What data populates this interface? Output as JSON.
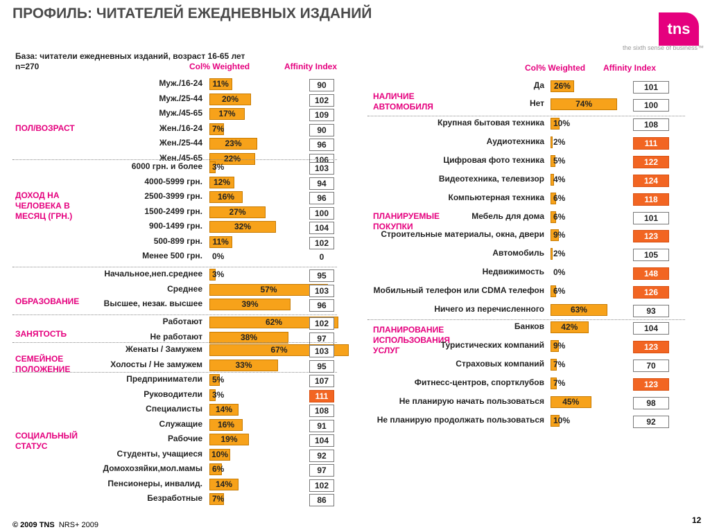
{
  "title": "ПРОФИЛЬ: ЧИТАТЕЛЕЙ ЕЖЕДНЕВНЫХ ИЗДАНИЙ",
  "logo": "tns",
  "tagline": "the sixth sense of business™",
  "base_line1": "База: читатели ежедневных изданий, возраст 16-65 лет",
  "base_line2": "n=270",
  "footer": {
    "copyright": "© 2009 TNS",
    "source": "NRS+ 2009"
  },
  "page_number": "12",
  "colors": {
    "bar": "#f7a21a",
    "index_high": "#f26522",
    "accent": "#e5007e"
  },
  "left_header": {
    "col": "Col% Weighted",
    "affinity": "Affinity Index"
  },
  "right_header": {
    "col": "Col% Weighted",
    "affinity": "Affinity Index"
  },
  "chart_data": {
    "type": "bar",
    "left_panel": [
      {
        "category": "ПОЛ/ВОЗРАСТ",
        "rows": [
          {
            "label": "Муж./16-24",
            "pct": 11,
            "index": 90
          },
          {
            "label": "Муж./25-44",
            "pct": 20,
            "index": 102
          },
          {
            "label": "Муж./45-65",
            "pct": 17,
            "index": 109
          },
          {
            "label": "Жен./16-24",
            "pct": 7,
            "index": 90
          },
          {
            "label": "Жен./25-44",
            "pct": 23,
            "index": 96
          },
          {
            "label": "Жен./45-65",
            "pct": 22,
            "index": 106
          }
        ]
      },
      {
        "category": "ДОХОД НА ЧЕЛОВЕКА В МЕСЯЦ (ГРН.)",
        "rows": [
          {
            "label": "6000 грн. и более",
            "pct": 3,
            "index": 103
          },
          {
            "label": "4000-5999 грн.",
            "pct": 12,
            "index": 94
          },
          {
            "label": "2500-3999 грн.",
            "pct": 16,
            "index": 96
          },
          {
            "label": "1500-2499 грн.",
            "pct": 27,
            "index": 100
          },
          {
            "label": "900-1499 грн.",
            "pct": 32,
            "index": 104
          },
          {
            "label": "500-899 грн.",
            "pct": 11,
            "index": 102
          },
          {
            "label": "Менее 500 грн.",
            "pct": 0,
            "index": 0
          }
        ]
      },
      {
        "category": "ОБРАЗОВАНИЕ",
        "rows": [
          {
            "label": "Начальное,неп.среднее",
            "pct": 3,
            "index": 95
          },
          {
            "label": "Среднее",
            "pct": 57,
            "index": 103
          },
          {
            "label": "Высшее, незак. высшее",
            "pct": 39,
            "index": 96
          }
        ]
      },
      {
        "category": "ЗАНЯТОСТЬ",
        "rows": [
          {
            "label": "Работают",
            "pct": 62,
            "index": 102
          },
          {
            "label": "Не работают",
            "pct": 38,
            "index": 97
          }
        ]
      },
      {
        "category": "СЕМЕЙНОЕ ПОЛОЖЕНИЕ",
        "rows": [
          {
            "label": "Женаты / Замужем",
            "pct": 67,
            "index": 103
          },
          {
            "label": "Холосты / Не замужем",
            "pct": 33,
            "index": 95
          }
        ]
      },
      {
        "category": "СОЦИАЛЬНЫЙ СТАТУС",
        "rows": [
          {
            "label": "Предприниматели",
            "pct": 5,
            "index": 107
          },
          {
            "label": "Руководители",
            "pct": 3,
            "index": 111
          },
          {
            "label": "Специалисты",
            "pct": 14,
            "index": 108
          },
          {
            "label": "Служащие",
            "pct": 16,
            "index": 91
          },
          {
            "label": "Рабочие",
            "pct": 19,
            "index": 104
          },
          {
            "label": "Студенты, учащиеся",
            "pct": 10,
            "index": 92
          },
          {
            "label": "Домохозяйки,мол.мамы",
            "pct": 6,
            "index": 97
          },
          {
            "label": "Пенсионеры, инвалид.",
            "pct": 14,
            "index": 102
          },
          {
            "label": "Безработные",
            "pct": 7,
            "index": 86
          }
        ]
      }
    ],
    "right_panel": [
      {
        "category": "НАЛИЧИЕ АВТОМОБИЛЯ",
        "rows": [
          {
            "label": "Да",
            "pct": 26,
            "index": 101
          },
          {
            "label": "Нет",
            "pct": 74,
            "index": 100
          }
        ]
      },
      {
        "category": "ПЛАНИРУЕМЫЕ ПОКУПКИ",
        "rows": [
          {
            "label": "Крупная бытовая техника",
            "pct": 10,
            "index": 108
          },
          {
            "label": "Аудиотехника",
            "pct": 2,
            "index": 111
          },
          {
            "label": "Цифровая фото техника",
            "pct": 5,
            "index": 122
          },
          {
            "label": "Видеотехника, телевизор",
            "pct": 4,
            "index": 124
          },
          {
            "label": "Компьютерная техника",
            "pct": 6,
            "index": 118
          },
          {
            "label": "Мебель для дома",
            "pct": 6,
            "index": 101
          },
          {
            "label": "Строительные материалы, окна, двери",
            "pct": 9,
            "index": 123
          },
          {
            "label": "Автомобиль",
            "pct": 2,
            "index": 105
          },
          {
            "label": "Недвижимость",
            "pct": 0,
            "index": 148
          },
          {
            "label": "Мобильный телефон или CDMA телефон",
            "pct": 6,
            "index": 126
          },
          {
            "label": "Ничего из перечисленного",
            "pct": 63,
            "index": 93
          }
        ]
      },
      {
        "category": "ПЛАНИРОВАНИЕ ИСПОЛЬЗОВАНИЯ УСЛУГ",
        "rows": [
          {
            "label": "Банков",
            "pct": 42,
            "index": 104
          },
          {
            "label": "Туристических компаний",
            "pct": 9,
            "index": 123
          },
          {
            "label": "Страховых компаний",
            "pct": 7,
            "index": 70
          },
          {
            "label": "Фитнесс-центров, спортклубов",
            "pct": 7,
            "index": 123
          },
          {
            "label": "Не планирую начать пользоваться",
            "pct": 45,
            "index": 98
          },
          {
            "label": "Не планирую продолжать пользоваться",
            "pct": 10,
            "index": 92
          }
        ]
      }
    ]
  }
}
